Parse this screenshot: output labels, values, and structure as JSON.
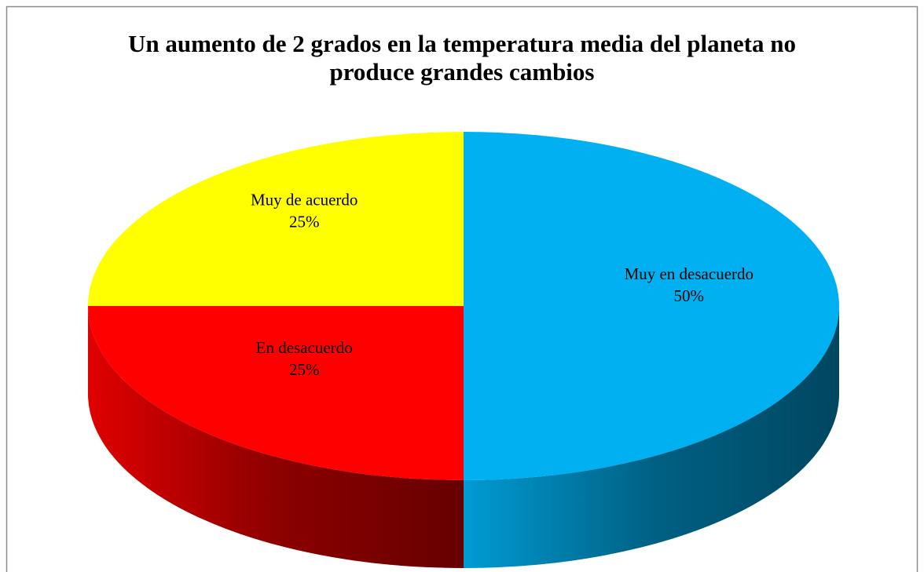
{
  "chart_data": {
    "type": "pie",
    "title": "Un aumento de 2 grados en la temperatura media del planeta no produce grandes cambios",
    "categories": [
      "Muy en desacuerdo",
      "En desacuerdo",
      "Muy de acuerdo"
    ],
    "values": [
      50,
      25,
      25
    ],
    "value_labels": [
      "50%",
      "25%",
      "25%"
    ],
    "colors": [
      "#00b0f0",
      "#ff0000",
      "#ffff00"
    ]
  }
}
